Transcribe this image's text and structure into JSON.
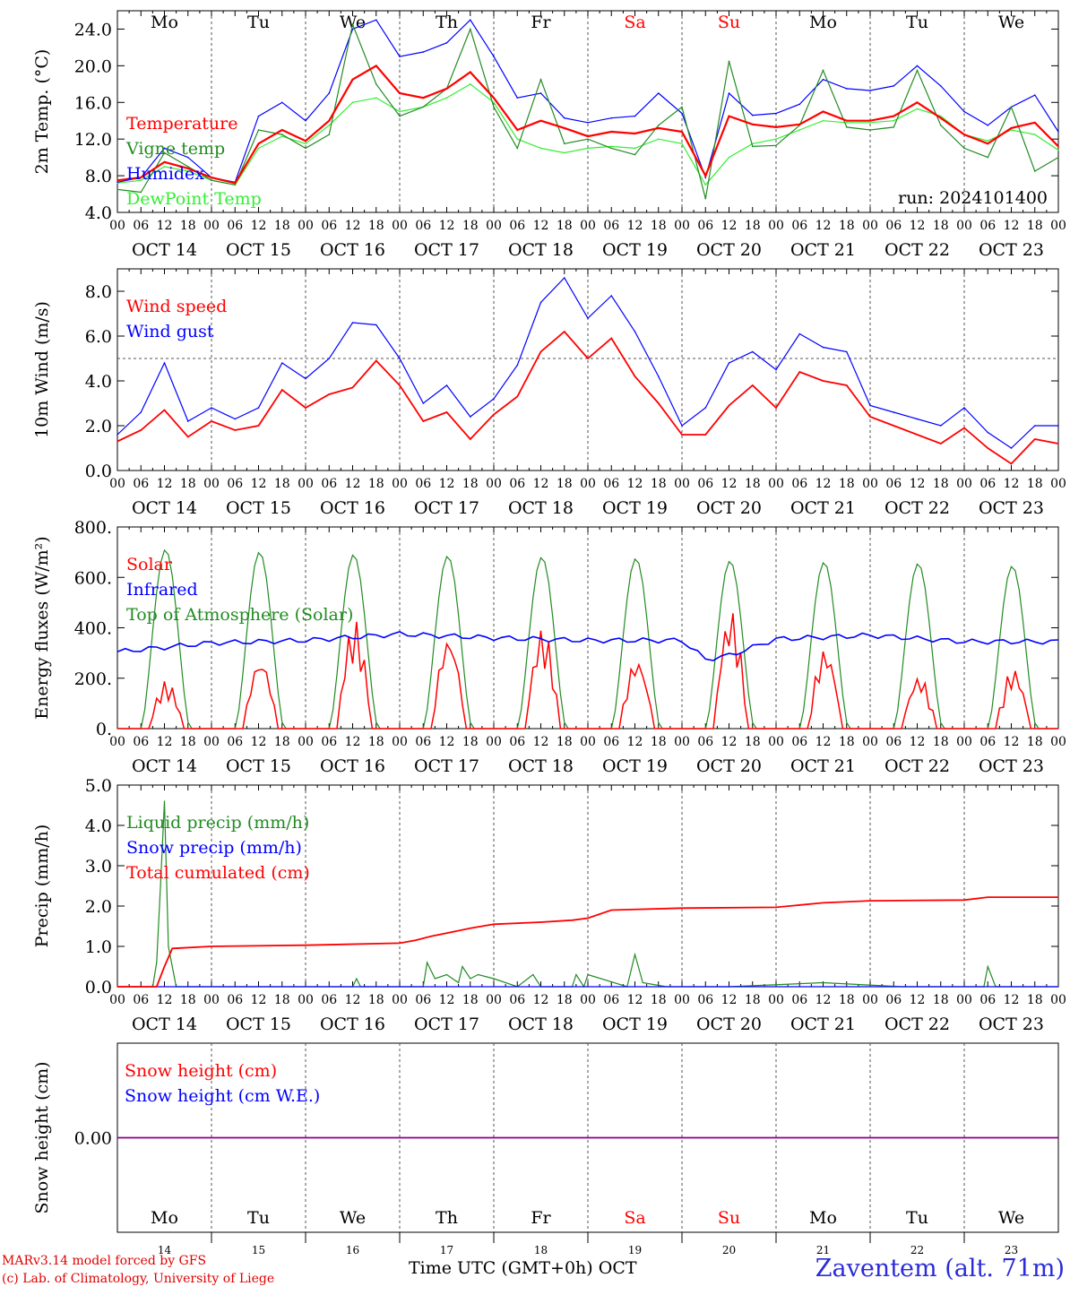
{
  "colors": {
    "red": "#ff0000",
    "green": "#228b22",
    "blue": "#0000ff",
    "lime": "#33ee33",
    "purple": "#8b008b",
    "grid": "#555555",
    "weekend": "#ff0000"
  },
  "days": {
    "names": [
      "Mo",
      "Tu",
      "We",
      "Th",
      "Fr",
      "Sa",
      "Su",
      "Mo",
      "Tu",
      "We"
    ],
    "weekend": [
      false,
      false,
      false,
      false,
      false,
      true,
      true,
      false,
      false,
      false
    ],
    "dates": [
      "OCT 14",
      "OCT 15",
      "OCT 16",
      "OCT 17",
      "OCT 18",
      "OCT 19",
      "OCT 20",
      "OCT 21",
      "OCT 22",
      "OCT 23"
    ],
    "numbers": [
      "14",
      "15",
      "16",
      "17",
      "18",
      "19",
      "20",
      "21",
      "22",
      "23"
    ],
    "hour_labels": [
      "00",
      "06",
      "12",
      "18"
    ],
    "final_hour_label": "00"
  },
  "footer": {
    "model": "MARv3.14 model forced by GFS",
    "lab": "(c) Lab. of Climatology, University of Liege",
    "xlabel": "Time UTC (GMT+0h)",
    "month": "OCT",
    "station": "Zaventem (alt. 71m)"
  },
  "chart_data": [
    {
      "id": "temp",
      "type": "line",
      "ylabel": "2m Temp. (°C)",
      "ylim": [
        4,
        26
      ],
      "yticks": [
        "4.0",
        "8.0",
        "12.0",
        "16.0",
        "20.0",
        "24.0"
      ],
      "run_label": "run: 2024101400",
      "x_unit": "hours since OCT 14 00 UTC",
      "series": [
        {
          "name": "Temperature",
          "color": "red",
          "x": [
            0,
            6,
            12,
            18,
            24,
            30,
            36,
            42,
            48,
            54,
            60,
            66,
            72,
            78,
            84,
            90,
            96,
            102,
            108,
            114,
            120,
            126,
            132,
            138,
            144,
            150,
            156,
            162,
            168,
            174,
            180,
            186,
            192,
            198,
            204,
            210,
            216,
            222,
            228,
            234,
            240
          ],
          "y": [
            7.5,
            7.8,
            9.5,
            8.8,
            7.8,
            7.2,
            11.5,
            13.0,
            11.8,
            14.0,
            18.5,
            20.0,
            17.0,
            16.5,
            17.5,
            19.3,
            16.5,
            13.0,
            14.0,
            13.2,
            12.3,
            12.8,
            12.6,
            13.2,
            12.8,
            8.0,
            14.5,
            13.6,
            13.3,
            13.6,
            15.0,
            14.0,
            14.0,
            14.5,
            16.0,
            14.3,
            12.5,
            11.5,
            13.2,
            13.8,
            11.2
          ]
        },
        {
          "name": "Vigne temp",
          "color": "green",
          "x": [
            0,
            6,
            12,
            18,
            24,
            30,
            36,
            42,
            48,
            54,
            60,
            66,
            72,
            78,
            84,
            90,
            96,
            102,
            108,
            114,
            120,
            126,
            132,
            138,
            144,
            150,
            156,
            162,
            168,
            174,
            180,
            186,
            192,
            198,
            204,
            210,
            216,
            222,
            228,
            234,
            240
          ],
          "y": [
            6.5,
            6.2,
            10.5,
            9.0,
            7.5,
            7.0,
            13.0,
            12.5,
            11.0,
            12.5,
            24.5,
            18.0,
            14.5,
            15.5,
            17.5,
            24.0,
            15.5,
            11.0,
            18.5,
            11.5,
            12.0,
            11.0,
            10.3,
            13.5,
            15.5,
            5.5,
            20.5,
            11.2,
            11.3,
            13.5,
            19.5,
            13.3,
            13.0,
            13.3,
            19.5,
            13.5,
            11.0,
            10.0,
            15.5,
            8.5,
            10.0
          ]
        },
        {
          "name": "Humidex",
          "color": "blue",
          "x": [
            0,
            6,
            12,
            18,
            24,
            30,
            36,
            42,
            48,
            54,
            60,
            66,
            72,
            78,
            84,
            90,
            96,
            102,
            108,
            114,
            120,
            126,
            132,
            138,
            144,
            150,
            156,
            162,
            168,
            174,
            180,
            186,
            192,
            198,
            204,
            210,
            216,
            222,
            228,
            234,
            240
          ],
          "y": [
            7.3,
            7.8,
            11.0,
            10.0,
            7.8,
            7.3,
            14.5,
            16.0,
            14.0,
            17.0,
            24.0,
            25.0,
            21.0,
            21.5,
            22.5,
            25.0,
            21.0,
            16.5,
            17.0,
            14.3,
            13.8,
            14.3,
            14.5,
            17.0,
            14.8,
            7.8,
            17.0,
            14.6,
            14.8,
            15.8,
            18.5,
            17.5,
            17.3,
            17.8,
            20.0,
            17.8,
            15.0,
            13.5,
            15.5,
            16.8,
            12.8
          ]
        },
        {
          "name": "DewPoint Temp",
          "color": "lime",
          "x": [
            0,
            6,
            12,
            18,
            24,
            30,
            36,
            42,
            48,
            54,
            60,
            66,
            72,
            78,
            84,
            90,
            96,
            102,
            108,
            114,
            120,
            126,
            132,
            138,
            144,
            150,
            156,
            162,
            168,
            174,
            180,
            186,
            192,
            198,
            204,
            210,
            216,
            222,
            228,
            234,
            240
          ],
          "y": [
            7.2,
            7.5,
            9.0,
            8.5,
            7.5,
            7.0,
            11.0,
            12.3,
            11.5,
            13.5,
            16.0,
            16.5,
            15.0,
            15.5,
            16.5,
            18.0,
            16.0,
            12.0,
            11.0,
            10.5,
            11.0,
            11.2,
            11.0,
            12.0,
            11.5,
            7.0,
            10.0,
            11.5,
            12.0,
            13.0,
            14.0,
            13.8,
            13.8,
            14.0,
            15.3,
            14.5,
            12.5,
            11.8,
            13.0,
            12.5,
            10.8
          ]
        }
      ]
    },
    {
      "id": "wind",
      "type": "line",
      "ylabel": "10m Wind (m/s)",
      "ylim": [
        0,
        9
      ],
      "yticks": [
        "0.0",
        "2.0",
        "4.0",
        "6.0",
        "8.0"
      ],
      "reference_line": 5,
      "x_unit": "hours since OCT 14 00 UTC",
      "series": [
        {
          "name": "Wind speed",
          "color": "red",
          "x": [
            0,
            6,
            12,
            18,
            24,
            30,
            36,
            42,
            48,
            54,
            60,
            66,
            72,
            78,
            84,
            90,
            96,
            102,
            108,
            114,
            120,
            126,
            132,
            138,
            144,
            150,
            156,
            162,
            168,
            174,
            180,
            186,
            192,
            198,
            204,
            210,
            216,
            222,
            228,
            234,
            240
          ],
          "y": [
            1.3,
            1.8,
            2.7,
            1.5,
            2.2,
            1.8,
            2.0,
            3.6,
            2.8,
            3.4,
            3.7,
            4.9,
            3.8,
            2.2,
            2.6,
            1.4,
            2.5,
            3.3,
            5.3,
            6.2,
            5.0,
            5.9,
            4.2,
            3.0,
            1.6,
            1.6,
            2.9,
            3.8,
            2.8,
            4.4,
            4.0,
            3.8,
            2.4,
            2.0,
            1.6,
            1.2,
            1.9,
            1.0,
            0.3,
            1.4,
            1.2
          ]
        },
        {
          "name": "Wind gust",
          "color": "blue",
          "x": [
            0,
            6,
            12,
            18,
            24,
            30,
            36,
            42,
            48,
            54,
            60,
            66,
            72,
            78,
            84,
            90,
            96,
            102,
            108,
            114,
            120,
            126,
            132,
            138,
            144,
            150,
            156,
            162,
            168,
            174,
            180,
            186,
            192,
            198,
            204,
            210,
            216,
            222,
            228,
            234,
            240
          ],
          "y": [
            1.6,
            2.6,
            4.8,
            2.2,
            2.8,
            2.3,
            2.8,
            4.8,
            4.1,
            5.0,
            6.6,
            6.5,
            5.0,
            3.0,
            3.8,
            2.4,
            3.2,
            4.7,
            7.5,
            8.6,
            6.8,
            7.8,
            6.2,
            4.2,
            2.0,
            2.8,
            4.8,
            5.3,
            4.5,
            6.1,
            5.5,
            5.3,
            2.9,
            2.6,
            2.3,
            2.0,
            2.8,
            1.7,
            1.0,
            2.0,
            2.0
          ]
        }
      ]
    },
    {
      "id": "energy",
      "type": "line",
      "ylabel": "Energy fluxes (W/m²)",
      "ylim": [
        0,
        800
      ],
      "yticks": [
        "0.",
        "200.",
        "400.",
        "600.",
        "800."
      ],
      "x_unit": "hours since OCT 14 00 UTC",
      "toa_peaks": [
        710,
        700,
        690,
        685,
        680,
        675,
        665,
        660,
        655,
        645
      ],
      "solar_peaks": [
        190,
        280,
        430,
        370,
        400,
        280,
        470,
        320,
        210,
        240
      ],
      "infrared": {
        "x": [
          0,
          24,
          48,
          72,
          96,
          120,
          144,
          150,
          156,
          168,
          192,
          216,
          240
        ],
        "y": [
          305,
          340,
          350,
          375,
          360,
          350,
          350,
          275,
          290,
          355,
          370,
          345,
          345
        ]
      },
      "series": [
        {
          "name": "Solar",
          "color": "red"
        },
        {
          "name": "Infrared",
          "color": "blue"
        },
        {
          "name": "Top of Atmosphere (Solar)",
          "color": "green"
        }
      ]
    },
    {
      "id": "precip",
      "type": "line",
      "ylabel": "Precip (mm/h)",
      "ylim": [
        0,
        5
      ],
      "yticks": [
        "0.0",
        "1.0",
        "2.0",
        "3.0",
        "4.0",
        "5.0"
      ],
      "x_unit": "hours since OCT 14 00 UTC",
      "series": [
        {
          "name": "Liquid precip (mm/h)",
          "color": "green",
          "x": [
            0,
            9,
            10,
            11,
            12,
            13,
            15,
            24,
            36,
            60,
            61,
            62,
            72,
            78,
            79,
            81,
            84,
            87,
            88,
            90,
            92,
            96,
            102,
            106,
            108,
            110,
            116,
            117,
            119,
            120,
            130,
            132,
            134,
            140,
            156,
            180,
            200,
            221,
            222,
            224,
            240
          ],
          "y": [
            0,
            0,
            0.6,
            2.5,
            4.6,
            1.0,
            0,
            0,
            0,
            0,
            0.2,
            0,
            0,
            0,
            0.6,
            0.2,
            0.3,
            0.1,
            0.5,
            0.2,
            0.3,
            0.2,
            0,
            0.3,
            0,
            0,
            0,
            0.3,
            0,
            0.3,
            0,
            0.8,
            0.1,
            0,
            0,
            0.1,
            0,
            0,
            0.5,
            0,
            0
          ]
        },
        {
          "name": "Snow precip (mm/h)",
          "color": "blue",
          "x": [
            0,
            240
          ],
          "y": [
            0,
            0
          ]
        },
        {
          "name": "Total cumulated (cm)",
          "color": "red",
          "x": [
            0,
            10,
            12,
            14,
            24,
            48,
            72,
            76,
            80,
            90,
            96,
            108,
            116,
            120,
            126,
            144,
            168,
            180,
            192,
            216,
            222,
            240
          ],
          "y": [
            0,
            0,
            0.5,
            0.95,
            1.0,
            1.03,
            1.08,
            1.15,
            1.25,
            1.45,
            1.55,
            1.6,
            1.65,
            1.7,
            1.9,
            1.95,
            1.97,
            2.08,
            2.13,
            2.15,
            2.22,
            2.22
          ]
        }
      ]
    },
    {
      "id": "snow",
      "type": "line",
      "ylabel": "Snow height (cm)",
      "ylim": [
        -1,
        1
      ],
      "yticks": [
        "0.00"
      ],
      "x_unit": "hours since OCT 14 00 UTC",
      "series": [
        {
          "name": "Snow height (cm)",
          "color": "red",
          "x": [
            0,
            240
          ],
          "y": [
            0,
            0
          ]
        },
        {
          "name": "Snow height (cm W.E.)",
          "color": "blue",
          "x": [
            0,
            240
          ],
          "y": [
            0,
            0
          ]
        }
      ]
    }
  ]
}
